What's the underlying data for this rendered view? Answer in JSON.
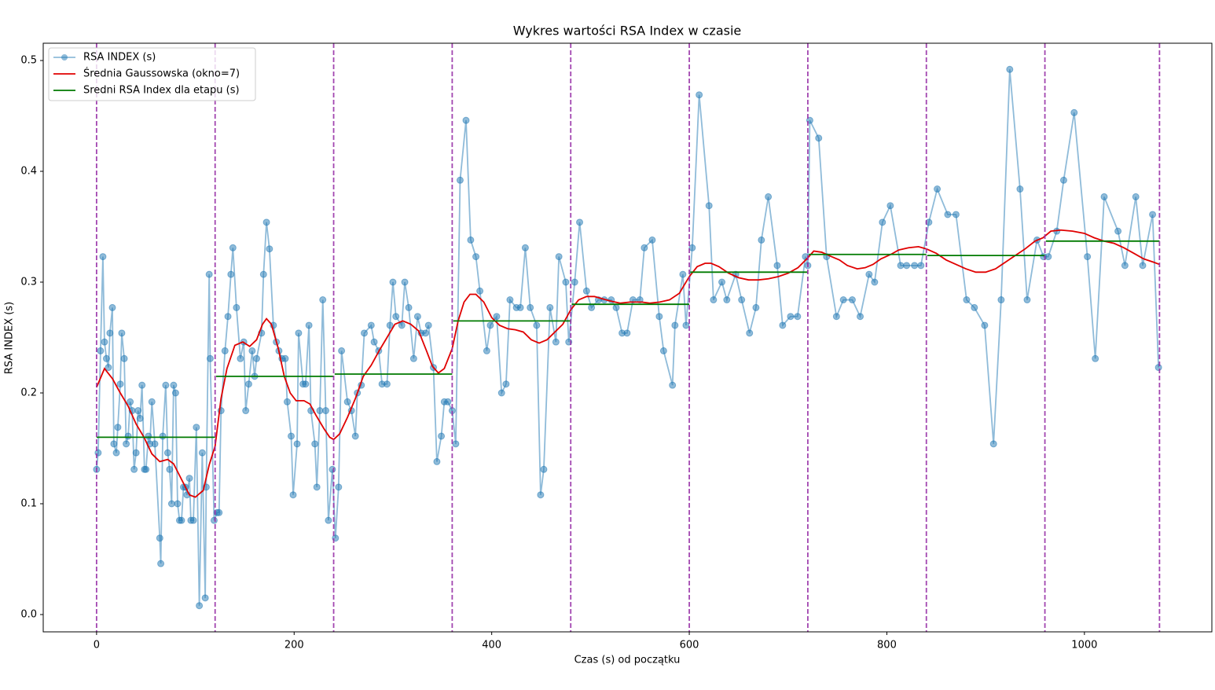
{
  "chart_data": {
    "type": "line",
    "title": "Wykres wartości RSA Index w czasie",
    "x_label": "Czas (s) od początku",
    "y_label": "RSA INDEX (s)",
    "xlim": [
      -54,
      1129
    ],
    "ylim": [
      -0.0156,
      0.5156
    ],
    "xticks": [
      0,
      200,
      400,
      600,
      800,
      1000
    ],
    "yticks": [
      {
        "value": 0,
        "label": "0.0"
      },
      0.1,
      0.2,
      0.3,
      0.4,
      0.5
    ],
    "legend": "upper left",
    "vlines": [
      0,
      120,
      240,
      360,
      480,
      600,
      720,
      840,
      960,
      1076
    ],
    "vline_color": "#9932a8",
    "series": [
      {
        "name": "RSA INDEX (s)",
        "color": "#1f77b4",
        "marker": true,
        "x": [
          0,
          1.6,
          4,
          6.4,
          8,
          10,
          12,
          13.5,
          16,
          17.5,
          20,
          21.5,
          24,
          25.5,
          28,
          30,
          32,
          34,
          36,
          38,
          40,
          42,
          44,
          46,
          48.5,
          50,
          52.5,
          54,
          56,
          59,
          64,
          65,
          67,
          70,
          72,
          74,
          76,
          78,
          80,
          82,
          84,
          86,
          88,
          90,
          91.5,
          94,
          95.5,
          98,
          101,
          104,
          107,
          110,
          111,
          114,
          115,
          119,
          122,
          124,
          126,
          130,
          133,
          136,
          138,
          141.6,
          145.6,
          149,
          151,
          154,
          157.5,
          160,
          162,
          167,
          169,
          172,
          175,
          179,
          182,
          184.6,
          187.7,
          191,
          193,
          197,
          199,
          203,
          204.5,
          209,
          211.6,
          215,
          217,
          221,
          223,
          226,
          229,
          232,
          234.7,
          238.7,
          241.8,
          245,
          248,
          254,
          258,
          262,
          264,
          268,
          271,
          278,
          281,
          285.6,
          289,
          294,
          297,
          300,
          303,
          309,
          312,
          316,
          321,
          325,
          328.6,
          333,
          336,
          341,
          344.5,
          349,
          352,
          355.6,
          360,
          363.6,
          368,
          374,
          378.7,
          384,
          388,
          395,
          398.6,
          405,
          410,
          414.5,
          418.5,
          425,
          429,
          434,
          439,
          445.5,
          449.5,
          452.7,
          459,
          465,
          468,
          475,
          478,
          484,
          489,
          496,
          501,
          508,
          514,
          521,
          526,
          532,
          537,
          543,
          550,
          554.5,
          562.5,
          569.6,
          574,
          583,
          585.5,
          593.5,
          596.7,
          603,
          610,
          620,
          624.5,
          633,
          638,
          647,
          653,
          661,
          667.5,
          673,
          680,
          689,
          694.5,
          702.5,
          709.6,
          717.6,
          720,
          722,
          731,
          739,
          749,
          756,
          765,
          773,
          782,
          787.6,
          795.5,
          803.5,
          814,
          820,
          828,
          834.5,
          842.5,
          851,
          861.6,
          870,
          880.7,
          888.6,
          899,
          908,
          915.7,
          924.4,
          934.8,
          942,
          952,
          958.6,
          963.4,
          972,
          979,
          989.6,
          1003,
          1011,
          1020,
          1034,
          1041,
          1052,
          1059,
          1069,
          1075
        ],
        "values": [
          0.131,
          0.146,
          0.238,
          0.323,
          0.246,
          0.231,
          0.223,
          0.254,
          0.277,
          0.154,
          0.146,
          0.169,
          0.208,
          0.254,
          0.231,
          0.154,
          0.161,
          0.192,
          0.184,
          0.131,
          0.146,
          0.184,
          0.177,
          0.207,
          0.131,
          0.131,
          0.161,
          0.154,
          0.192,
          0.154,
          0.069,
          0.046,
          0.161,
          0.207,
          0.146,
          0.131,
          0.1,
          0.207,
          0.2,
          0.1,
          0.085,
          0.085,
          0.115,
          0.115,
          0.108,
          0.123,
          0.085,
          0.085,
          0.169,
          0.008,
          0.146,
          0.015,
          0.115,
          0.307,
          0.231,
          0.085,
          0.092,
          0.092,
          0.184,
          0.238,
          0.269,
          0.307,
          0.331,
          0.277,
          0.231,
          0.246,
          0.184,
          0.208,
          0.238,
          0.215,
          0.231,
          0.254,
          0.307,
          0.354,
          0.33,
          0.261,
          0.246,
          0.238,
          0.231,
          0.231,
          0.192,
          0.161,
          0.108,
          0.154,
          0.254,
          0.208,
          0.208,
          0.261,
          0.184,
          0.154,
          0.115,
          0.184,
          0.284,
          0.184,
          0.085,
          0.131,
          0.069,
          0.115,
          0.238,
          0.192,
          0.184,
          0.161,
          0.2,
          0.207,
          0.254,
          0.261,
          0.246,
          0.238,
          0.208,
          0.208,
          0.261,
          0.3,
          0.269,
          0.261,
          0.3,
          0.277,
          0.231,
          0.269,
          0.254,
          0.254,
          0.261,
          0.223,
          0.138,
          0.161,
          0.192,
          0.192,
          0.184,
          0.154,
          0.392,
          0.446,
          0.338,
          0.323,
          0.292,
          0.238,
          0.261,
          0.269,
          0.2,
          0.208,
          0.284,
          0.277,
          0.277,
          0.331,
          0.277,
          0.261,
          0.108,
          0.131,
          0.277,
          0.246,
          0.323,
          0.3,
          0.246,
          0.3,
          0.354,
          0.292,
          0.277,
          0.284,
          0.284,
          0.284,
          0.277,
          0.254,
          0.254,
          0.284,
          0.284,
          0.331,
          0.338,
          0.269,
          0.238,
          0.207,
          0.261,
          0.307,
          0.261,
          0.331,
          0.469,
          0.369,
          0.284,
          0.3,
          0.284,
          0.307,
          0.284,
          0.254,
          0.277,
          0.338,
          0.377,
          0.315,
          0.261,
          0.269,
          0.269,
          0.323,
          0.315,
          0.446,
          0.43,
          0.323,
          0.269,
          0.284,
          0.284,
          0.269,
          0.307,
          0.3,
          0.354,
          0.369,
          0.315,
          0.315,
          0.315,
          0.315,
          0.354,
          0.384,
          0.361,
          0.361,
          0.284,
          0.277,
          0.261,
          0.154,
          0.284,
          0.492,
          0.384,
          0.284,
          0.338,
          0.323,
          0.323,
          0.346,
          0.392,
          0.453,
          0.323,
          0.231,
          0.377,
          0.346,
          0.315,
          0.377,
          0.315,
          0.361,
          0.223
        ]
      },
      {
        "name": "Średnia Gaussowska (okno=7)",
        "color": "#e00000",
        "marker": false,
        "x": [
          0,
          8,
          16,
          24,
          32,
          40,
          48,
          56,
          64,
          72,
          78,
          86,
          94,
          100,
          108,
          114,
          120,
          126,
          132,
          140,
          148,
          155,
          162,
          168,
          172,
          177,
          184,
          190,
          196,
          202,
          210,
          216,
          222,
          230,
          236,
          240,
          246,
          254,
          262,
          270,
          278,
          286,
          294,
          302,
          310,
          318,
          326,
          334,
          340,
          346,
          352,
          360,
          366,
          372,
          378,
          384,
          392,
          400,
          408,
          416,
          424,
          432,
          440,
          448,
          456,
          464,
          472,
          480,
          488,
          496,
          504,
          512,
          520,
          530,
          540,
          552,
          560,
          570,
          580,
          590,
          600,
          608,
          616,
          622,
          630,
          640,
          650,
          660,
          670,
          680,
          690,
          700,
          710,
          720,
          726,
          734,
          744,
          752,
          760,
          770,
          778,
          786,
          794,
          804,
          812,
          822,
          832,
          840,
          850,
          860,
          870,
          880,
          890,
          900,
          910,
          920,
          930,
          940,
          950,
          958,
          966,
          976,
          988,
          1000,
          1010,
          1020,
          1030,
          1040,
          1050,
          1060,
          1070,
          1076
        ],
        "values": [
          0.205,
          0.222,
          0.213,
          0.2,
          0.188,
          0.172,
          0.16,
          0.145,
          0.138,
          0.14,
          0.136,
          0.122,
          0.108,
          0.106,
          0.112,
          0.135,
          0.152,
          0.195,
          0.222,
          0.243,
          0.246,
          0.242,
          0.248,
          0.262,
          0.267,
          0.262,
          0.24,
          0.215,
          0.2,
          0.193,
          0.193,
          0.19,
          0.18,
          0.168,
          0.16,
          0.158,
          0.163,
          0.178,
          0.195,
          0.215,
          0.225,
          0.238,
          0.25,
          0.262,
          0.265,
          0.262,
          0.256,
          0.238,
          0.224,
          0.218,
          0.222,
          0.24,
          0.265,
          0.282,
          0.289,
          0.289,
          0.282,
          0.268,
          0.261,
          0.258,
          0.257,
          0.255,
          0.248,
          0.245,
          0.248,
          0.255,
          0.262,
          0.275,
          0.284,
          0.287,
          0.287,
          0.285,
          0.283,
          0.281,
          0.282,
          0.282,
          0.281,
          0.282,
          0.284,
          0.29,
          0.305,
          0.314,
          0.317,
          0.317,
          0.314,
          0.308,
          0.304,
          0.302,
          0.302,
          0.303,
          0.305,
          0.308,
          0.313,
          0.322,
          0.328,
          0.327,
          0.323,
          0.32,
          0.315,
          0.312,
          0.313,
          0.316,
          0.321,
          0.325,
          0.329,
          0.331,
          0.332,
          0.33,
          0.326,
          0.32,
          0.316,
          0.312,
          0.309,
          0.309,
          0.312,
          0.318,
          0.324,
          0.33,
          0.337,
          0.34,
          0.346,
          0.347,
          0.346,
          0.344,
          0.34,
          0.337,
          0.335,
          0.331,
          0.326,
          0.321,
          0.318,
          0.316
        ]
      },
      {
        "name": "Sredni RSA Index dla etapu (s)",
        "color": "#007a00",
        "marker": false,
        "x": [
          0,
          120,
          120,
          121,
          240,
          240,
          241,
          360,
          360,
          361,
          480,
          480,
          481,
          600,
          600,
          601,
          720,
          720,
          721,
          840,
          840,
          841,
          960,
          960,
          961,
          1076
        ],
        "values": [
          0.16,
          0.16,
          null,
          0.215,
          0.215,
          null,
          0.217,
          0.217,
          null,
          0.265,
          0.265,
          null,
          0.28,
          0.28,
          null,
          0.309,
          0.309,
          null,
          0.325,
          0.325,
          null,
          0.324,
          0.324,
          null,
          0.337,
          0.337
        ]
      }
    ]
  }
}
